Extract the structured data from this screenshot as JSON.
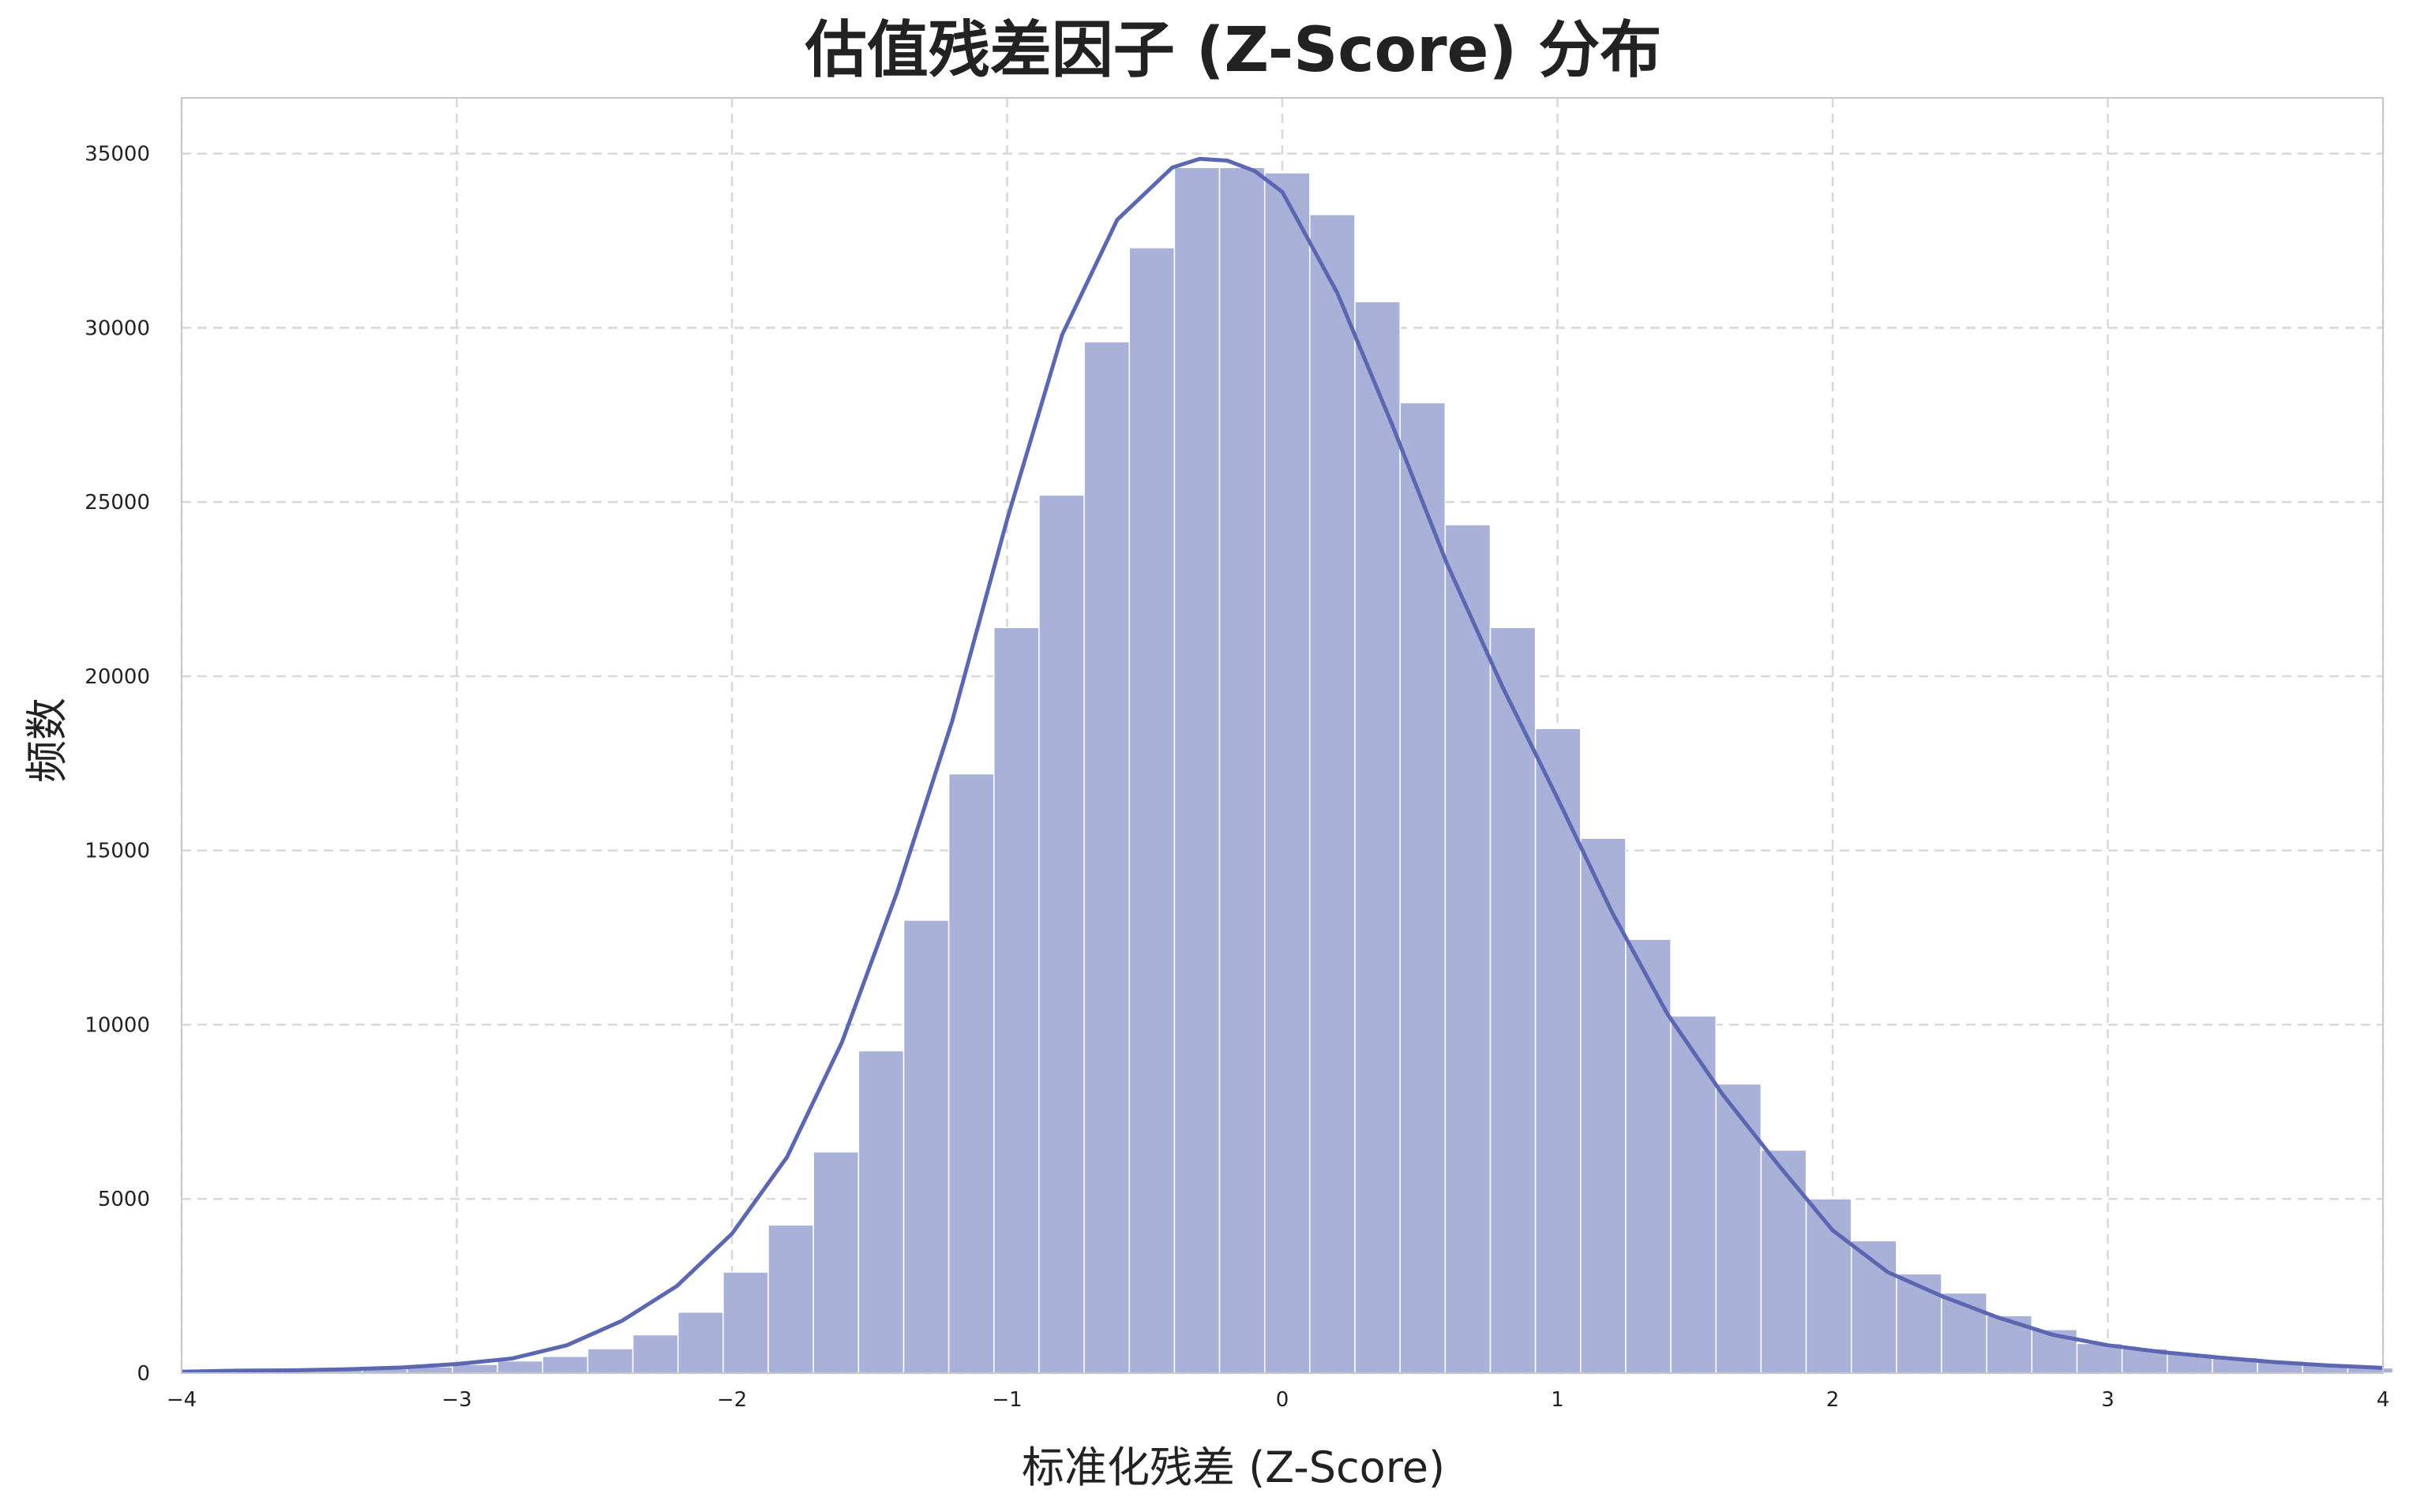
{
  "chart_data": {
    "type": "bar",
    "title": "估值残差因子 (Z-Score) 分布",
    "xlabel": "标准化残差 (Z-Score)",
    "ylabel": "频数",
    "xlim": [
      -4,
      4
    ],
    "ylim": [
      0,
      36600
    ],
    "x_ticks": [
      -4,
      -3,
      -2,
      -1,
      0,
      1,
      2,
      3,
      4
    ],
    "x_tick_labels": [
      "−4",
      "−3",
      "−2",
      "−1",
      "0",
      "1",
      "2",
      "3",
      "4"
    ],
    "y_ticks": [
      0,
      5000,
      10000,
      15000,
      20000,
      25000,
      30000,
      35000
    ],
    "y_tick_labels": [
      "0",
      "5000",
      "10000",
      "15000",
      "20000",
      "25000",
      "30000",
      "35000"
    ],
    "grid": true,
    "bar_color": "#aab1d8",
    "bar_edge_color": "#ffffff",
    "kde_color": "#5b67b0",
    "grid_color": "#d8d8d8",
    "frame_color": "#c8c8c8",
    "bins": {
      "x_start": [
        -4.0,
        -3.836,
        -3.672,
        -3.508,
        -3.344,
        -3.18,
        -3.016,
        -2.852,
        -2.688,
        -2.524,
        -2.36,
        -2.196,
        -2.032,
        -1.868,
        -1.704,
        -1.54,
        -1.376,
        -1.212,
        -1.048,
        -0.884,
        -0.72,
        -0.556,
        -0.392,
        -0.228,
        -0.064,
        0.1,
        0.264,
        0.428,
        0.592,
        0.756,
        0.92,
        1.084,
        1.248,
        1.412,
        1.576,
        1.74,
        1.904,
        2.068,
        2.232,
        2.396,
        2.56,
        2.724,
        2.888,
        3.052,
        3.216,
        3.38,
        3.544,
        3.708,
        3.872
      ],
      "width": 0.164,
      "counts": [
        60,
        60,
        80,
        90,
        120,
        180,
        250,
        350,
        480,
        700,
        1100,
        1750,
        2900,
        4250,
        6350,
        9250,
        13000,
        17200,
        21400,
        25200,
        29600,
        32300,
        34600,
        34600,
        34450,
        33250,
        30750,
        27850,
        24350,
        21400,
        18500,
        15350,
        12450,
        10250,
        8300,
        6400,
        5000,
        3800,
        2850,
        2300,
        1650,
        1250,
        850,
        700,
        550,
        450,
        350,
        250,
        150
      ]
    },
    "kde": {
      "x": [
        -4.0,
        -3.8,
        -3.6,
        -3.4,
        -3.2,
        -3.0,
        -2.8,
        -2.6,
        -2.4,
        -2.2,
        -2.0,
        -1.8,
        -1.6,
        -1.4,
        -1.2,
        -1.0,
        -0.8,
        -0.6,
        -0.4,
        -0.3,
        -0.2,
        -0.1,
        0.0,
        0.2,
        0.4,
        0.6,
        0.8,
        1.0,
        1.2,
        1.4,
        1.6,
        1.8,
        2.0,
        2.2,
        2.4,
        2.6,
        2.8,
        3.0,
        3.2,
        3.4,
        3.6,
        3.8,
        4.0
      ],
      "y": [
        40,
        70,
        80,
        110,
        160,
        260,
        420,
        800,
        1500,
        2500,
        4000,
        6200,
        9500,
        13800,
        18700,
        24500,
        29800,
        33100,
        34600,
        34850,
        34800,
        34500,
        33900,
        31000,
        27200,
        23200,
        19700,
        16500,
        13200,
        10300,
        8000,
        6000,
        4100,
        2900,
        2200,
        1600,
        1100,
        800,
        600,
        450,
        320,
        220,
        150
      ]
    }
  }
}
